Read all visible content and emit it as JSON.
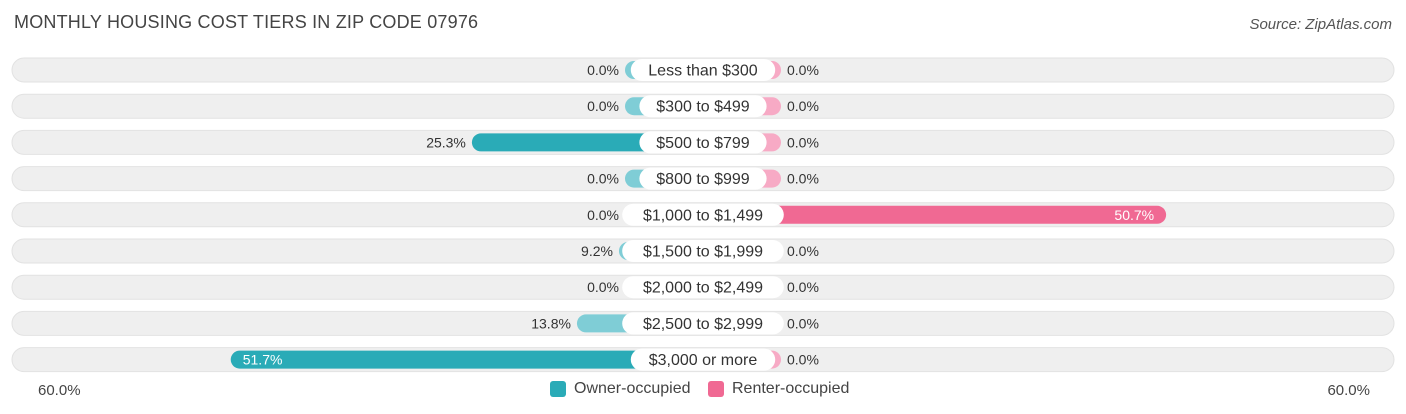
{
  "title": "MONTHLY HOUSING COST TIERS IN ZIP CODE 07976",
  "source": "Source: ZipAtlas.com",
  "colors": {
    "owner_light": "#7fcdd6",
    "owner_dark": "#2aabb7",
    "renter_light": "#f7aac5",
    "renter_dark": "#f06993",
    "row_bg": "#efefef"
  },
  "chart_data": {
    "type": "bar",
    "orientation": "horizontal-diverging",
    "categories": [
      "Less than $300",
      "$300 to $499",
      "$500 to $799",
      "$800 to $999",
      "$1,000 to $1,499",
      "$1,500 to $1,999",
      "$2,000 to $2,499",
      "$2,500 to $2,999",
      "$3,000 or more"
    ],
    "series": [
      {
        "name": "Owner-occupied",
        "values": [
          0.0,
          0.0,
          25.3,
          0.0,
          0.0,
          9.2,
          0.0,
          13.8,
          51.7
        ]
      },
      {
        "name": "Renter-occupied",
        "values": [
          0.0,
          0.0,
          0.0,
          0.0,
          50.7,
          0.0,
          0.0,
          0.0,
          0.0
        ]
      }
    ],
    "value_labels": {
      "owner": [
        "0.0%",
        "0.0%",
        "25.3%",
        "0.0%",
        "0.0%",
        "9.2%",
        "0.0%",
        "13.8%",
        "51.7%"
      ],
      "renter": [
        "0.0%",
        "0.0%",
        "0.0%",
        "0.0%",
        "50.7%",
        "0.0%",
        "0.0%",
        "0.0%",
        "0.0%"
      ]
    },
    "xlim": [
      -60,
      60
    ],
    "axis_min_label": "60.0%",
    "axis_max_label": "60.0%",
    "legend_position": "bottom-center"
  }
}
